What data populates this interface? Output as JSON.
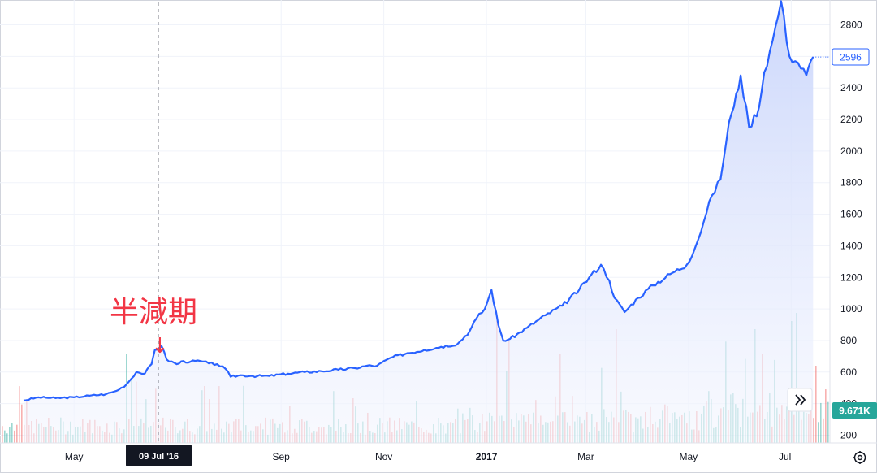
{
  "colors": {
    "line": "#2962ff",
    "area_top": "#c9d5fb",
    "area_bottom": "#f4f6fe",
    "vol_up": "#26a69a",
    "vol_down": "#ef5350",
    "annotation": "#f23645",
    "crosshair_label_bg": "#131722",
    "volume_badge_bg": "#26a69a",
    "grid": "#f0f3fa"
  },
  "annotation": {
    "text": "半減期",
    "arrow": "↓"
  },
  "crosshair": {
    "label": "09 Jul '16"
  },
  "last_price_label": "2596",
  "volume_label": "9.671K",
  "icons": {
    "scroll_button": "chevron-double-right-icon",
    "settings": "gear-icon"
  },
  "chart_data": {
    "type": "line",
    "title": "",
    "xlabel": "",
    "ylabel": "",
    "ylim": [
      170,
      2950
    ],
    "grid": true,
    "x_ticks": [
      "May",
      "Sep",
      "Nov",
      "2017",
      "Mar",
      "May",
      "Jul"
    ],
    "y_ticks": [
      200,
      400,
      600,
      800,
      1000,
      1200,
      1400,
      1600,
      1800,
      2000,
      2200,
      2400,
      2600,
      2800
    ],
    "series": [
      {
        "x": [
          "2016-04-01",
          "2016-04-10",
          "2016-04-20",
          "2016-05-01",
          "2016-05-10",
          "2016-05-20",
          "2016-05-26",
          "2016-06-01",
          "2016-06-07",
          "2016-06-12",
          "2016-06-16",
          "2016-06-18",
          "2016-06-22",
          "2016-06-25",
          "2016-07-01",
          "2016-07-05",
          "2016-07-09",
          "2016-07-15",
          "2016-07-20",
          "2016-07-25",
          "2016-07-30",
          "2016-08-02",
          "2016-08-08",
          "2016-08-15",
          "2016-08-25",
          "2016-09-05",
          "2016-09-15",
          "2016-09-25",
          "2016-10-05",
          "2016-10-15",
          "2016-10-22",
          "2016-10-28",
          "2016-11-05",
          "2016-11-15",
          "2016-11-25",
          "2016-12-05",
          "2016-12-15",
          "2016-12-22",
          "2016-12-26",
          "2016-12-31",
          "2017-01-04",
          "2017-01-08",
          "2017-01-11",
          "2017-01-15",
          "2017-01-25",
          "2017-02-05",
          "2017-02-15",
          "2017-02-25",
          "2017-03-03",
          "2017-03-10",
          "2017-03-15",
          "2017-03-18",
          "2017-03-24",
          "2017-04-01",
          "2017-04-10",
          "2017-04-20",
          "2017-04-30",
          "2017-05-05",
          "2017-05-10",
          "2017-05-15",
          "2017-05-20",
          "2017-05-25",
          "2017-05-28",
          "2017-06-01",
          "2017-06-06",
          "2017-06-12",
          "2017-06-15",
          "2017-06-20",
          "2017-06-25",
          "2017-06-30",
          "2017-07-05",
          "2017-07-10",
          "2017-07-14"
        ],
        "values": [
          420,
          440,
          435,
          440,
          450,
          460,
          480,
          520,
          600,
          590,
          650,
          740,
          765,
          680,
          650,
          670,
          665,
          670,
          655,
          650,
          620,
          570,
          580,
          575,
          575,
          590,
          600,
          605,
          615,
          625,
          640,
          640,
          690,
          720,
          740,
          760,
          780,
          860,
          940,
          1000,
          1120,
          900,
          800,
          810,
          880,
          960,
          1020,
          1120,
          1200,
          1280,
          1180,
          1070,
          980,
          1070,
          1150,
          1220,
          1280,
          1390,
          1550,
          1720,
          1820,
          2180,
          2280,
          2480,
          2150,
          2280,
          2500,
          2700,
          2950,
          2600,
          2560,
          2480,
          2596
        ]
      }
    ],
    "volume": {
      "label": "9.671K"
    }
  }
}
